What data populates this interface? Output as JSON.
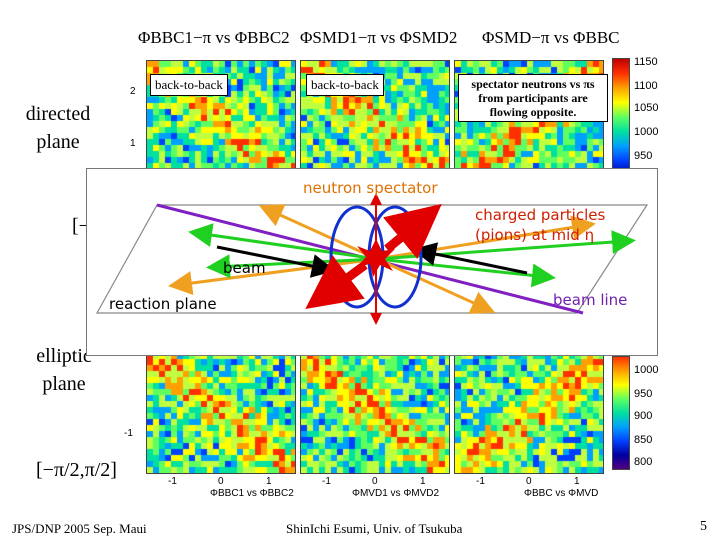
{
  "titles": {
    "t1": "ΦBBC1−π vs ΦBBC2",
    "t2": "ΦSMD1−π vs ΦSMD2",
    "t3": "ΦSMD−π vs ΦBBC"
  },
  "side": {
    "directed": "directed",
    "plane1": "plane",
    "range1": "[−",
    "elliptic": "elliptic",
    "plane2": "plane",
    "range2": "[−π/2,π/2]"
  },
  "callouts": {
    "c1": "back-to-back",
    "c2": "back-to-back",
    "c3": "spectator neutrons vs πs from participants are flowing opposite."
  },
  "overlay": {
    "neutron": "neutron spectator",
    "charged": "charged particles (pions) at mid η",
    "beam": "beam",
    "reaction": "reaction plane",
    "beamline": "beam line"
  },
  "scale_top": [
    "1150",
    "1100",
    "1050",
    "1000",
    "950"
  ],
  "scale_bottom": [
    "1000",
    "950",
    "900",
    "850",
    "800"
  ],
  "yticks_top": [
    "2",
    "1"
  ],
  "yticks_bottom": [
    "-1"
  ],
  "xticks": [
    "-1",
    "0",
    "1"
  ],
  "axis_labels": [
    "ΦBBC1 vs ΦBBC2",
    "ΦMVD1 vs ΦMVD2",
    "ΦBBC vs ΦMVD"
  ],
  "footer": {
    "left": "JPS/DNP 2005 Sep. Maui",
    "center": "ShinIchi Esumi, Univ. of Tsukuba",
    "page": "5"
  }
}
